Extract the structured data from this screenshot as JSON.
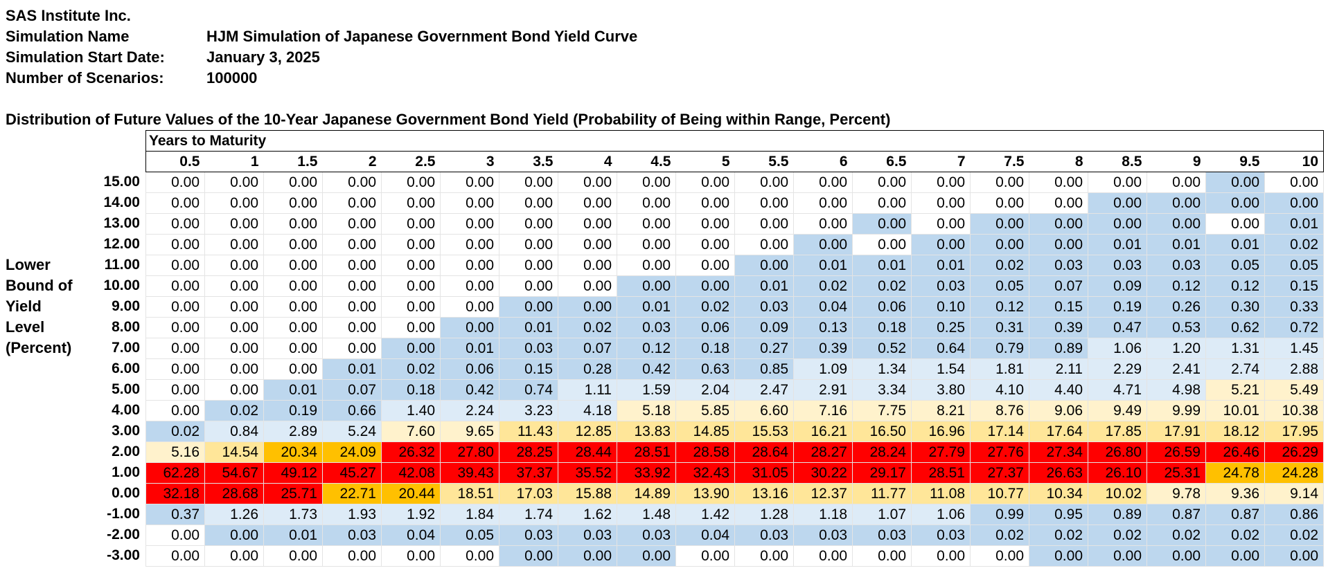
{
  "header": {
    "company": "SAS Institute Inc.",
    "sim_name_label": "Simulation Name",
    "sim_name": "HJM Simulation of Japanese Government Bond Yield Curve",
    "start_label": "Simulation Start Date:",
    "start_date": "January 3, 2025",
    "scen_label": "Number of Scenarios:",
    "scenarios": "100000"
  },
  "table": {
    "title": "Distribution of Future Values of the 10-Year Japanese Government Bond Yield (Probability of Being within Range, Percent)",
    "maturity_header": "Years to Maturity",
    "row_axis_label": [
      "Lower",
      "Bound of",
      "Yield",
      "Level",
      "(Percent)"
    ],
    "columns": [
      "0.5",
      "1",
      "1.5",
      "2",
      "2.5",
      "3",
      "3.5",
      "4",
      "4.5",
      "5",
      "5.5",
      "6",
      "6.5",
      "7",
      "7.5",
      "8",
      "8.5",
      "9",
      "9.5",
      "10"
    ],
    "rows": [
      {
        "bound": "15.00",
        "values": [
          "0.00",
          "0.00",
          "0.00",
          "0.00",
          "0.00",
          "0.00",
          "0.00",
          "0.00",
          "0.00",
          "0.00",
          "0.00",
          "0.00",
          "0.00",
          "0.00",
          "0.00",
          "0.00",
          "0.00",
          "0.00",
          "0.00",
          "0.00"
        ]
      },
      {
        "bound": "14.00",
        "values": [
          "0.00",
          "0.00",
          "0.00",
          "0.00",
          "0.00",
          "0.00",
          "0.00",
          "0.00",
          "0.00",
          "0.00",
          "0.00",
          "0.00",
          "0.00",
          "0.00",
          "0.00",
          "0.00",
          "0.00",
          "0.00",
          "0.00",
          "0.00"
        ]
      },
      {
        "bound": "13.00",
        "values": [
          "0.00",
          "0.00",
          "0.00",
          "0.00",
          "0.00",
          "0.00",
          "0.00",
          "0.00",
          "0.00",
          "0.00",
          "0.00",
          "0.00",
          "0.00",
          "0.00",
          "0.00",
          "0.00",
          "0.00",
          "0.00",
          "0.00",
          "0.01"
        ]
      },
      {
        "bound": "12.00",
        "values": [
          "0.00",
          "0.00",
          "0.00",
          "0.00",
          "0.00",
          "0.00",
          "0.00",
          "0.00",
          "0.00",
          "0.00",
          "0.00",
          "0.00",
          "0.00",
          "0.00",
          "0.00",
          "0.00",
          "0.01",
          "0.01",
          "0.01",
          "0.02"
        ]
      },
      {
        "bound": "11.00",
        "values": [
          "0.00",
          "0.00",
          "0.00",
          "0.00",
          "0.00",
          "0.00",
          "0.00",
          "0.00",
          "0.00",
          "0.00",
          "0.00",
          "0.01",
          "0.01",
          "0.01",
          "0.02",
          "0.03",
          "0.03",
          "0.03",
          "0.05",
          "0.05"
        ]
      },
      {
        "bound": "10.00",
        "values": [
          "0.00",
          "0.00",
          "0.00",
          "0.00",
          "0.00",
          "0.00",
          "0.00",
          "0.00",
          "0.00",
          "0.00",
          "0.01",
          "0.02",
          "0.02",
          "0.03",
          "0.05",
          "0.07",
          "0.09",
          "0.12",
          "0.12",
          "0.15"
        ]
      },
      {
        "bound": "9.00",
        "values": [
          "0.00",
          "0.00",
          "0.00",
          "0.00",
          "0.00",
          "0.00",
          "0.00",
          "0.00",
          "0.01",
          "0.02",
          "0.03",
          "0.04",
          "0.06",
          "0.10",
          "0.12",
          "0.15",
          "0.19",
          "0.26",
          "0.30",
          "0.33"
        ]
      },
      {
        "bound": "8.00",
        "values": [
          "0.00",
          "0.00",
          "0.00",
          "0.00",
          "0.00",
          "0.00",
          "0.01",
          "0.02",
          "0.03",
          "0.06",
          "0.09",
          "0.13",
          "0.18",
          "0.25",
          "0.31",
          "0.39",
          "0.47",
          "0.53",
          "0.62",
          "0.72"
        ]
      },
      {
        "bound": "7.00",
        "values": [
          "0.00",
          "0.00",
          "0.00",
          "0.00",
          "0.00",
          "0.01",
          "0.03",
          "0.07",
          "0.12",
          "0.18",
          "0.27",
          "0.39",
          "0.52",
          "0.64",
          "0.79",
          "0.89",
          "1.06",
          "1.20",
          "1.31",
          "1.45"
        ]
      },
      {
        "bound": "6.00",
        "values": [
          "0.00",
          "0.00",
          "0.00",
          "0.01",
          "0.02",
          "0.06",
          "0.15",
          "0.28",
          "0.42",
          "0.63",
          "0.85",
          "1.09",
          "1.34",
          "1.54",
          "1.81",
          "2.11",
          "2.29",
          "2.41",
          "2.74",
          "2.88"
        ]
      },
      {
        "bound": "5.00",
        "values": [
          "0.00",
          "0.00",
          "0.01",
          "0.07",
          "0.18",
          "0.42",
          "0.74",
          "1.11",
          "1.59",
          "2.04",
          "2.47",
          "2.91",
          "3.34",
          "3.80",
          "4.10",
          "4.40",
          "4.71",
          "4.98",
          "5.21",
          "5.49"
        ]
      },
      {
        "bound": "4.00",
        "values": [
          "0.00",
          "0.02",
          "0.19",
          "0.66",
          "1.40",
          "2.24",
          "3.23",
          "4.18",
          "5.18",
          "5.85",
          "6.60",
          "7.16",
          "7.75",
          "8.21",
          "8.76",
          "9.06",
          "9.49",
          "9.99",
          "10.01",
          "10.38"
        ]
      },
      {
        "bound": "3.00",
        "values": [
          "0.02",
          "0.84",
          "2.89",
          "5.24",
          "7.60",
          "9.65",
          "11.43",
          "12.85",
          "13.83",
          "14.85",
          "15.53",
          "16.21",
          "16.50",
          "16.96",
          "17.14",
          "17.64",
          "17.85",
          "17.91",
          "18.12",
          "17.95"
        ]
      },
      {
        "bound": "2.00",
        "values": [
          "5.16",
          "14.54",
          "20.34",
          "24.09",
          "26.32",
          "27.80",
          "28.25",
          "28.44",
          "28.51",
          "28.58",
          "28.64",
          "28.27",
          "28.24",
          "27.79",
          "27.76",
          "27.34",
          "26.80",
          "26.59",
          "26.46",
          "26.29"
        ]
      },
      {
        "bound": "1.00",
        "values": [
          "62.28",
          "54.67",
          "49.12",
          "45.27",
          "42.08",
          "39.43",
          "37.37",
          "35.52",
          "33.92",
          "32.43",
          "31.05",
          "30.22",
          "29.17",
          "28.51",
          "27.37",
          "26.63",
          "26.10",
          "25.31",
          "24.78",
          "24.28"
        ]
      },
      {
        "bound": "0.00",
        "values": [
          "32.18",
          "28.68",
          "25.71",
          "22.71",
          "20.44",
          "18.51",
          "17.03",
          "15.88",
          "14.89",
          "13.90",
          "13.16",
          "12.37",
          "11.77",
          "11.08",
          "10.77",
          "10.34",
          "10.02",
          "9.78",
          "9.36",
          "9.14"
        ]
      },
      {
        "bound": "-1.00",
        "values": [
          "0.37",
          "1.26",
          "1.73",
          "1.93",
          "1.92",
          "1.84",
          "1.74",
          "1.62",
          "1.48",
          "1.42",
          "1.28",
          "1.18",
          "1.07",
          "1.06",
          "0.99",
          "0.95",
          "0.89",
          "0.87",
          "0.87",
          "0.86"
        ]
      },
      {
        "bound": "-2.00",
        "values": [
          "0.00",
          "0.00",
          "0.01",
          "0.03",
          "0.04",
          "0.05",
          "0.03",
          "0.03",
          "0.03",
          "0.04",
          "0.03",
          "0.03",
          "0.03",
          "0.03",
          "0.02",
          "0.02",
          "0.02",
          "0.02",
          "0.02",
          "0.02"
        ]
      },
      {
        "bound": "-3.00",
        "values": [
          "0.00",
          "0.00",
          "0.00",
          "0.00",
          "0.00",
          "0.00",
          "0.00",
          "0.00",
          "0.00",
          "0.00",
          "0.00",
          "0.00",
          "0.00",
          "0.00",
          "0.00",
          "0.00",
          "0.00",
          "0.00",
          "0.00",
          "0.00"
        ]
      }
    ],
    "cell_colors": {
      "blue": "#bdd7ee",
      "light": "#ddebf7",
      "cream": "#fff2cc",
      "yellow": "#ffe699",
      "orange": "#ffc000",
      "red": "#ff0000",
      "white": "#ffffff"
    }
  }
}
